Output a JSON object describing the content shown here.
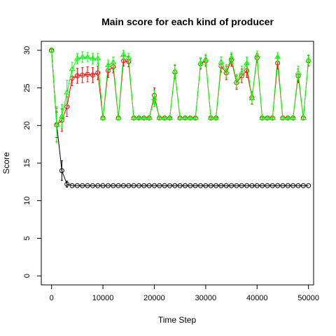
{
  "chart_data": {
    "type": "line",
    "title": "Main score for each kind of producer",
    "xlabel": "Time Step",
    "ylabel": "Score",
    "xlim": [
      -2000,
      51000
    ],
    "ylim": [
      -1.2,
      31.2
    ],
    "xticks": [
      0,
      10000,
      20000,
      30000,
      40000,
      50000
    ],
    "yticks": [
      0,
      5,
      10,
      15,
      20,
      25,
      30
    ],
    "grid": false,
    "legend": "none",
    "x": [
      0,
      1000,
      2000,
      3000,
      4000,
      5000,
      6000,
      7000,
      8000,
      9000,
      10000,
      11000,
      12000,
      13000,
      14000,
      15000,
      16000,
      17000,
      18000,
      19000,
      20000,
      21000,
      22000,
      23000,
      24000,
      25000,
      26000,
      27000,
      28000,
      29000,
      30000,
      31000,
      32000,
      33000,
      34000,
      35000,
      36000,
      37000,
      38000,
      39000,
      40000,
      41000,
      42000,
      43000,
      44000,
      45000,
      46000,
      47000,
      48000,
      49000,
      50000
    ],
    "series": [
      {
        "color": "#000000",
        "marker": "circle",
        "values": [
          30,
          20.1,
          14,
          12.2,
          12,
          12,
          12,
          12,
          12,
          12,
          12,
          12,
          12,
          12,
          12,
          12,
          12,
          12,
          12,
          12,
          12,
          12,
          12,
          12,
          12,
          12,
          12,
          12,
          12,
          12,
          12,
          12,
          12,
          12,
          12,
          12,
          12,
          12,
          12,
          12,
          12,
          12,
          12,
          12,
          12,
          12,
          12,
          12,
          12,
          12,
          12
        ],
        "errors": [
          0.3,
          1.7,
          1.3,
          0.4,
          0,
          0,
          0,
          0,
          0,
          0,
          0,
          0,
          0,
          0,
          0,
          0,
          0,
          0,
          0,
          0,
          0,
          0,
          0,
          0,
          0,
          0,
          0,
          0,
          0,
          0,
          0,
          0,
          0,
          0,
          0,
          0,
          0,
          0,
          0,
          0,
          0,
          0,
          0,
          0,
          0,
          0,
          0,
          0,
          0,
          0,
          0
        ]
      },
      {
        "color": "#ff0000",
        "marker": "circle",
        "values": [
          30,
          20.1,
          20.7,
          22.5,
          26.3,
          26.6,
          26.7,
          26.8,
          26.7,
          27,
          21,
          27.3,
          27.8,
          21,
          28.6,
          28.5,
          21,
          21,
          21,
          21,
          24,
          21,
          21,
          21,
          27.1,
          21,
          21,
          21,
          21,
          28.2,
          28.6,
          21,
          21,
          27.9,
          27,
          28.7,
          25.7,
          26.6,
          27.3,
          23.7,
          29,
          21,
          21,
          21,
          28.3,
          21,
          21,
          21,
          26.6,
          21,
          28.6
        ],
        "errors": [
          0.3,
          2.2,
          1.5,
          1.3,
          1,
          1,
          1,
          1,
          1,
          0.9,
          0.3,
          0.9,
          0.8,
          0.3,
          0.7,
          0.7,
          0.2,
          0.2,
          0.2,
          0.2,
          1,
          0.2,
          0.2,
          0.2,
          0.9,
          0.2,
          0.2,
          0.2,
          0.2,
          0.7,
          0.7,
          0.2,
          0.2,
          0.8,
          0.9,
          0.8,
          0.9,
          0.9,
          0.9,
          0.8,
          0.6,
          0.2,
          0.2,
          0.2,
          0.8,
          0.2,
          0.2,
          0.2,
          0.9,
          0.2,
          0.7
        ]
      },
      {
        "color": "#00ff00",
        "marker": "triangle",
        "values": [
          30,
          20.1,
          21.2,
          24.4,
          27.5,
          28.9,
          29.1,
          29.1,
          28.9,
          28.9,
          21,
          28,
          28.4,
          21,
          29.4,
          29,
          21,
          21,
          21,
          21,
          23.6,
          21,
          21,
          21,
          27.2,
          21,
          21,
          21,
          21,
          28.3,
          28.8,
          21,
          21,
          28.4,
          27.2,
          29,
          25.9,
          27,
          28.3,
          23.6,
          29.3,
          21,
          21,
          21,
          29.1,
          21,
          21,
          21,
          27,
          21,
          28.7
        ],
        "errors": [
          0.3,
          2.4,
          1.6,
          1.6,
          0.9,
          0.7,
          0.7,
          0.6,
          0.7,
          0.7,
          0.3,
          0.7,
          0.7,
          0.3,
          0.6,
          0.6,
          0.2,
          0.2,
          0.2,
          0.2,
          1.1,
          0.2,
          0.2,
          0.2,
          0.9,
          0.2,
          0.2,
          0.2,
          0.2,
          0.7,
          0.7,
          0.2,
          0.2,
          0.7,
          0.9,
          0.7,
          0.9,
          0.9,
          0.8,
          0.8,
          0.6,
          0.2,
          0.2,
          0.2,
          0.6,
          0.2,
          0.2,
          0.2,
          0.9,
          0.2,
          0.7
        ]
      }
    ]
  }
}
